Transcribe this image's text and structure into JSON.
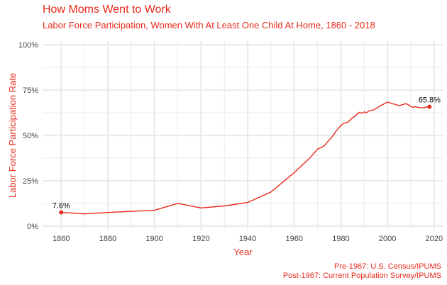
{
  "title": "How Moms Went to Work",
  "subtitle": "Labor Force Participation, Women With At Least One Child At Home, 1860 - 2018",
  "caption_line1": "Pre-1967: U.S. Census/IPUMS",
  "caption_line2": "Post-1967: Current Population Survey/IPUMS",
  "colors": {
    "accent": "#e8291c",
    "grid": "#ebebeb",
    "text": "#444444"
  },
  "chart_data": {
    "type": "line",
    "xlabel": "Year",
    "ylabel": "Labor Force Participation Rate",
    "xlim": [
      1852,
      2024
    ],
    "ylim": [
      -0.02,
      1.02
    ],
    "x_ticks": [
      1860,
      1880,
      1900,
      1920,
      1940,
      1960,
      1980,
      2000,
      2020
    ],
    "x_tick_labels": [
      "1860",
      "1880",
      "1900",
      "1920",
      "1940",
      "1960",
      "1980",
      "2000",
      "2020"
    ],
    "y_ticks": [
      0,
      0.25,
      0.5,
      0.75,
      1.0
    ],
    "y_tick_labels": [
      "0%",
      "25%",
      "50%",
      "75%",
      "100%"
    ],
    "grid": true,
    "series": [
      {
        "x": [
          1860,
          1870,
          1880,
          1900,
          1910,
          1920,
          1930,
          1940,
          1950,
          1960,
          1967,
          1968,
          1969,
          1970,
          1971,
          1972,
          1973,
          1974,
          1975,
          1976,
          1977,
          1978,
          1979,
          1980,
          1981,
          1982,
          1983,
          1984,
          1985,
          1986,
          1987,
          1988,
          1989,
          1990,
          1991,
          1992,
          1993,
          1994,
          1995,
          1996,
          1997,
          1998,
          1999,
          2000,
          2001,
          2002,
          2003,
          2004,
          2005,
          2006,
          2007,
          2008,
          2009,
          2010,
          2011,
          2012,
          2013,
          2014,
          2015,
          2016,
          2017,
          2018
        ],
        "y": [
          0.076,
          0.067,
          0.075,
          0.087,
          0.125,
          0.1,
          0.111,
          0.13,
          0.188,
          0.295,
          0.38,
          0.395,
          0.41,
          0.425,
          0.43,
          0.435,
          0.445,
          0.46,
          0.475,
          0.49,
          0.505,
          0.525,
          0.54,
          0.555,
          0.565,
          0.57,
          0.573,
          0.585,
          0.598,
          0.605,
          0.618,
          0.628,
          0.622,
          0.63,
          0.625,
          0.635,
          0.638,
          0.64,
          0.648,
          0.655,
          0.665,
          0.67,
          0.678,
          0.684,
          0.68,
          0.675,
          0.672,
          0.668,
          0.664,
          0.668,
          0.672,
          0.675,
          0.668,
          0.66,
          0.655,
          0.658,
          0.655,
          0.652,
          0.653,
          0.655,
          0.657,
          0.658
        ]
      }
    ],
    "annotations": [
      {
        "x": 1860,
        "y": 0.076,
        "label": "7.6%"
      },
      {
        "x": 2018,
        "y": 0.658,
        "label": "65.8%"
      }
    ]
  }
}
